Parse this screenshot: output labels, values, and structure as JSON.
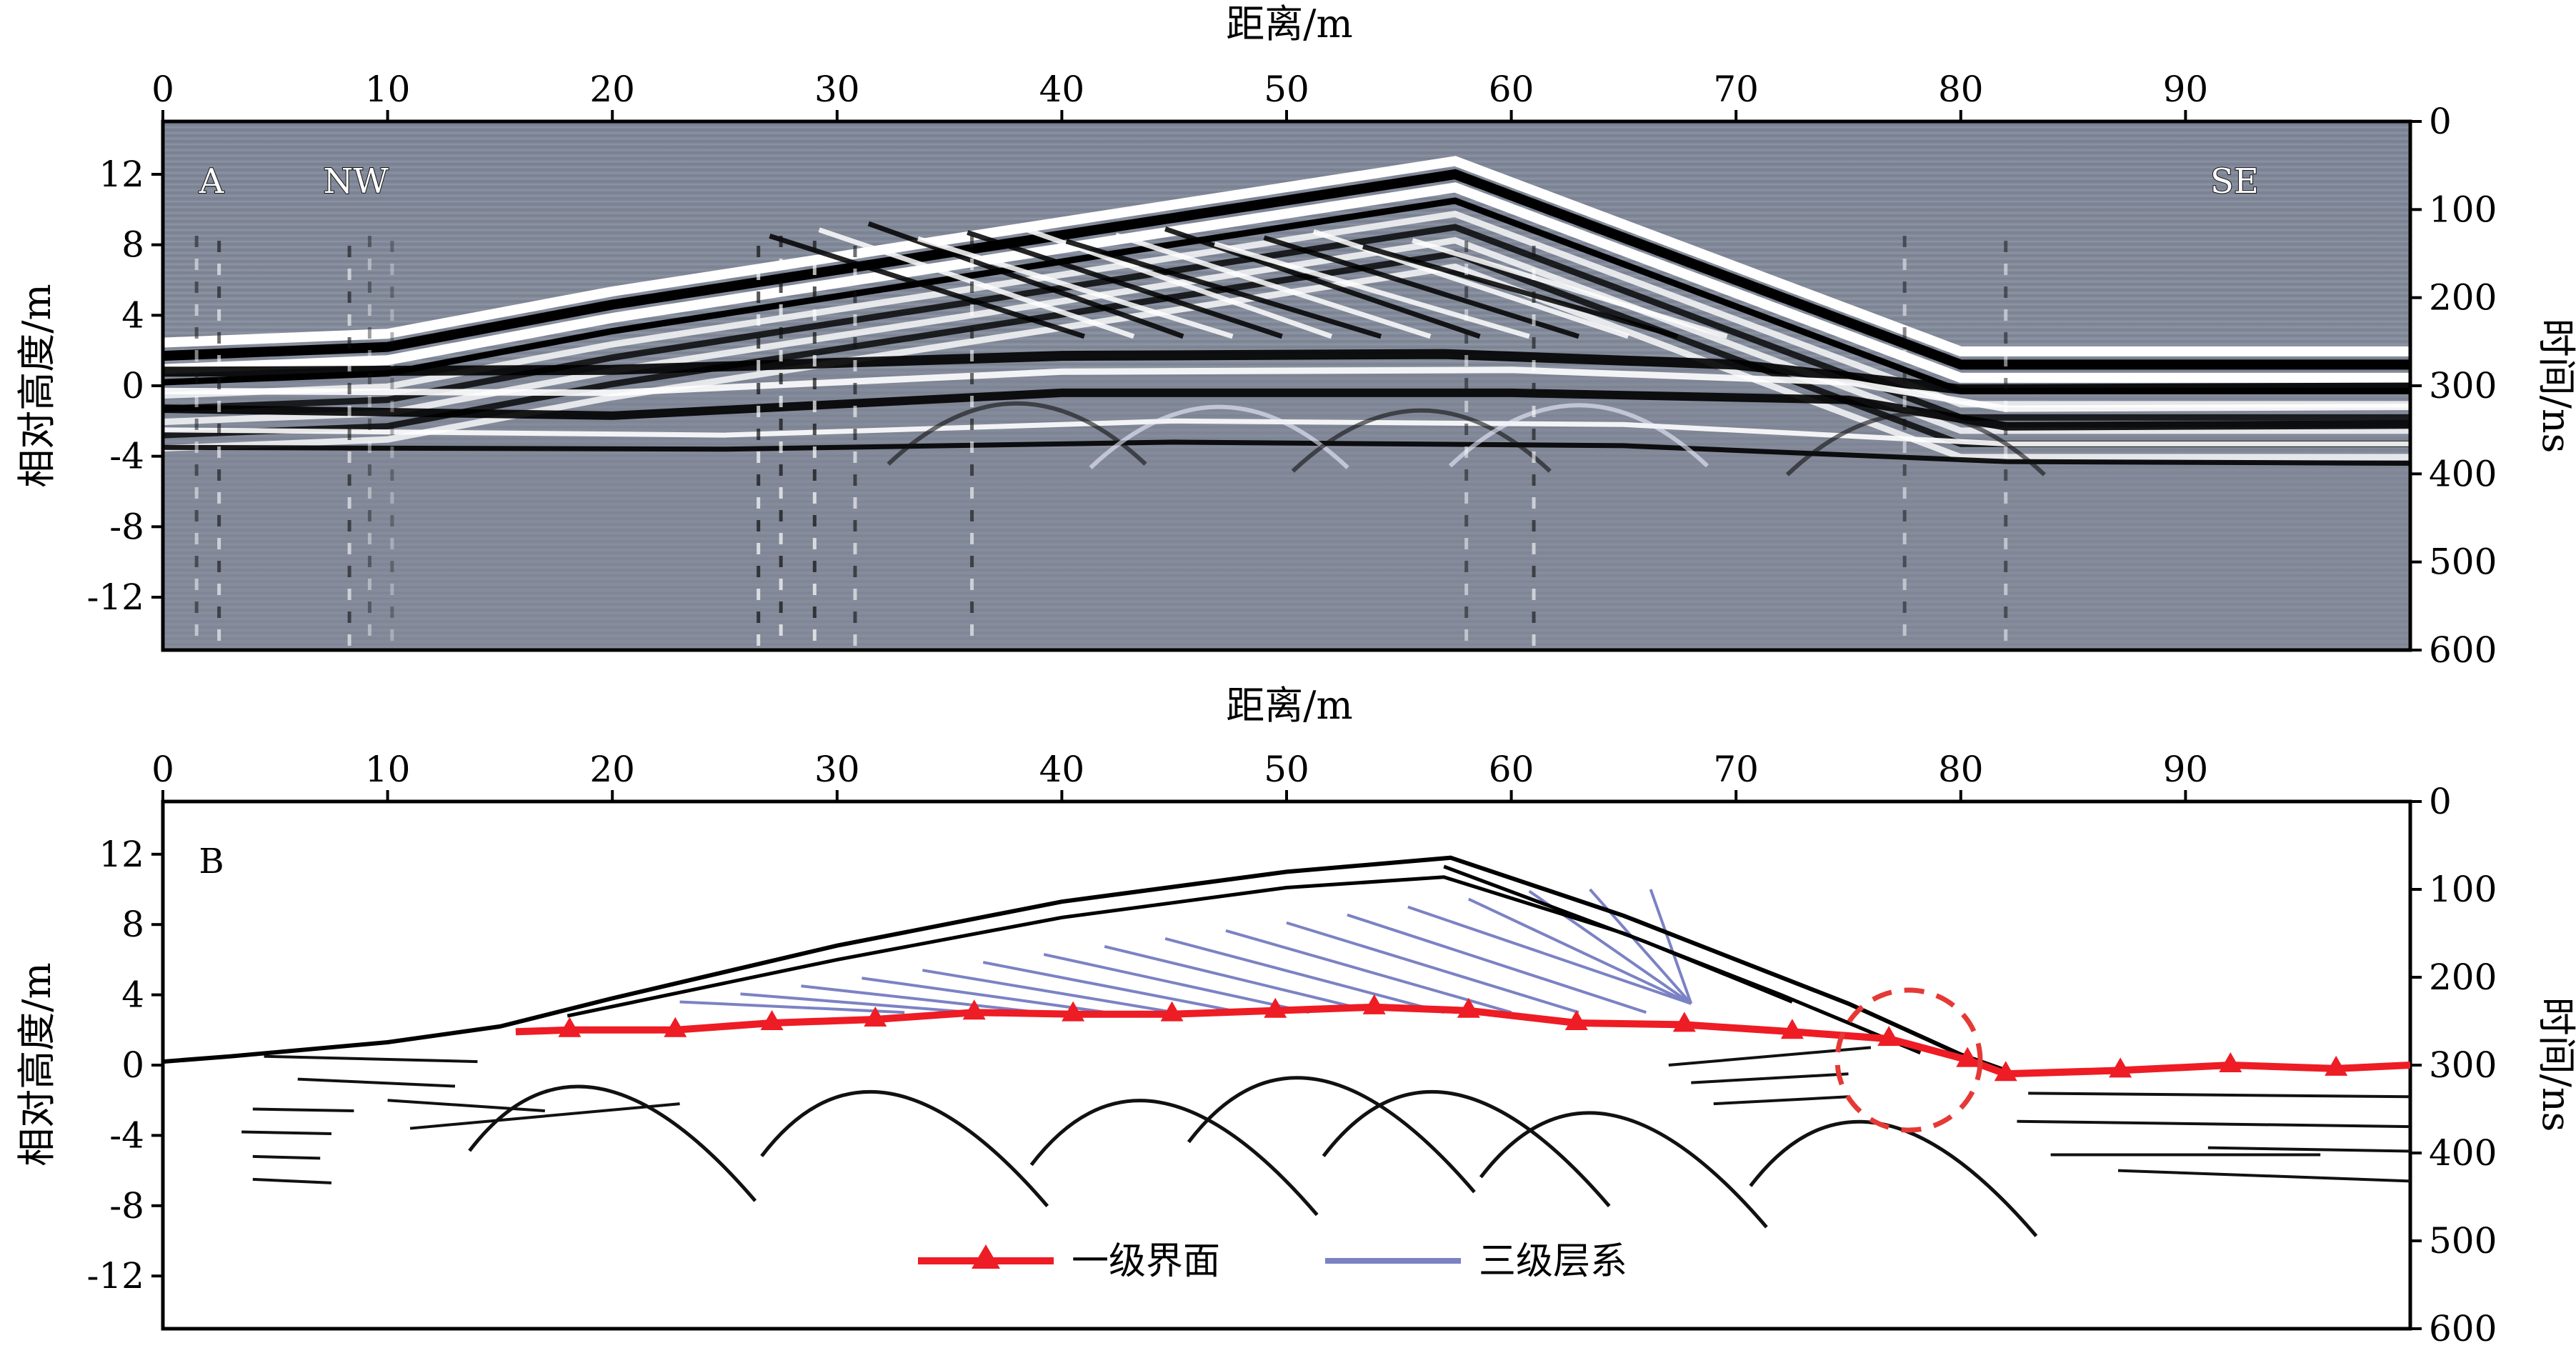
{
  "axes": {
    "x_title": "距离/m",
    "x_ticks": [
      "0",
      "10",
      "20",
      "30",
      "40",
      "50",
      "60",
      "70",
      "80",
      "90"
    ],
    "y_left_title": "相对高度/m",
    "y_left_ticks": [
      "12",
      "8",
      "4",
      "0",
      "-4",
      "-8",
      "-12"
    ],
    "y_right_title": "时间/ns",
    "y_right_ticks": [
      "0",
      "100",
      "200",
      "300",
      "400",
      "500",
      "600"
    ]
  },
  "panel_a": {
    "label": "A",
    "direction_left": "NW",
    "direction_right": "SE"
  },
  "panel_b": {
    "label": "B"
  },
  "legend": {
    "interface": "一级界面",
    "layer": "三级层系"
  },
  "colors": {
    "interface": "#ee1c24",
    "layer": "#7b82c4",
    "radar_bg": "#80889a",
    "circle": "#e53935"
  },
  "chart_data": [
    {
      "type": "line",
      "panel": "A",
      "description_source": "ground penetrating radar profile",
      "xlim": [
        0,
        100
      ],
      "ylim_left": [
        -15,
        15
      ],
      "ylim_right": [
        600,
        0
      ]
    },
    {
      "type": "line",
      "panel": "B",
      "xlim": [
        0,
        100
      ],
      "ylim_left": [
        -15,
        15
      ],
      "ylim_right": [
        600,
        0
      ],
      "series": [
        {
          "name": "一级界面",
          "x": [
            15.7,
            18.1,
            22.8,
            27.1,
            31.7,
            36.1,
            40.5,
            44.9,
            49.5,
            53.9,
            58.1,
            62.9,
            67.7,
            72.5,
            76.8,
            80.3,
            82.0,
            87.1,
            92.0,
            96.7,
            100
          ],
          "y": [
            1.9,
            2.0,
            2.0,
            2.4,
            2.6,
            3.0,
            2.9,
            2.9,
            3.1,
            3.3,
            3.1,
            2.4,
            2.3,
            1.9,
            1.5,
            0.3,
            -0.5,
            -0.3,
            0.0,
            -0.2,
            0.0
          ]
        }
      ]
    }
  ]
}
